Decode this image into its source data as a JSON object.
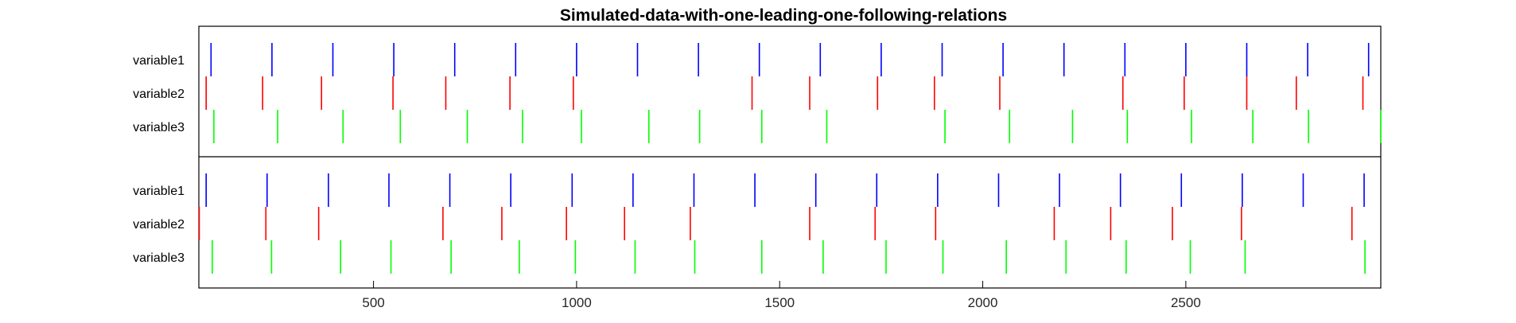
{
  "chart_data": {
    "type": "event-raster",
    "title": "Simulated-data-with-one-leading-one-following-relations",
    "xlabel": "",
    "ylabel": "",
    "xlim": [
      70,
      2980
    ],
    "xticks": [
      500,
      1000,
      1500,
      2000,
      2500
    ],
    "xtick_labels": [
      "500",
      "1000",
      "1500",
      "2000",
      "2500"
    ],
    "grid": false,
    "colors": {
      "variable1": "#0000ff",
      "variable2": "#ff0000",
      "variable3": "#00ff00"
    },
    "panels": [
      {
        "name": "upper",
        "series": [
          {
            "name": "variable1",
            "events": [
              100,
              250,
              400,
              550,
              700,
              850,
              1000,
              1150,
              1300,
              1450,
              1600,
              1750,
              1900,
              2050,
              2200,
              2350,
              2500,
              2650,
              2800,
              2950
            ]
          },
          {
            "name": "variable2",
            "events": [
              88,
              227,
              372,
              548,
              678,
              836,
              992,
              1432,
              1574,
              1741,
              1881,
              2042,
              2345,
              2496,
              2650,
              2772,
              2936
            ]
          },
          {
            "name": "variable3",
            "events": [
              107,
              264,
              425,
              566,
              731,
              867,
              1012,
              1178,
              1303,
              1456,
              1616,
              1907,
              2066,
              2221,
              2356,
              2514,
              2665,
              2802,
              2980
            ]
          }
        ]
      },
      {
        "name": "lower",
        "series": [
          {
            "name": "variable1",
            "events": [
              88,
              238,
              389,
              538,
              688,
              838,
              989,
              1139,
              1289,
              1439,
              1589,
              1739,
              1889,
              2039,
              2189,
              2339,
              2489,
              2639,
              2789,
              2939
            ]
          },
          {
            "name": "variable2",
            "events": [
              71,
              235,
              365,
              671,
              816,
              975,
              1118,
              1280,
              1574,
              1735,
              1884,
              2176,
              2315,
              2467,
              2637,
              2909
            ]
          },
          {
            "name": "variable3",
            "events": [
              103,
              249,
              419,
              543,
              691,
              859,
              997,
              1144,
              1291,
              1456,
              1607,
              1762,
              1902,
              2058,
              2205,
              2353,
              2511,
              2646,
              2941
            ]
          }
        ]
      }
    ]
  }
}
